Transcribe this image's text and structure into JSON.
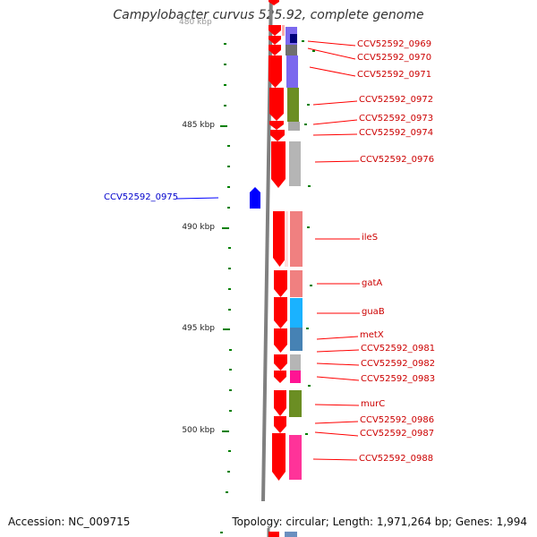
{
  "title": "Campylobacter curvus 525.92, complete genome",
  "partial_tick_label": "480 kbp",
  "ticks": [
    {
      "label": "485 kbp"
    },
    {
      "label": "490 kbp"
    },
    {
      "label": "495 kbp"
    },
    {
      "label": "500 kbp"
    }
  ],
  "genes_plus": [
    {
      "label": "CCV52592_0969",
      "color": "#00007a"
    },
    {
      "label": "CCV52592_0970",
      "color": "#6f6f6f"
    },
    {
      "label": "CCV52592_0971",
      "color": "#7b68ee"
    },
    {
      "label": "CCV52592_0972",
      "color": "#6b8e23"
    },
    {
      "label": "CCV52592_0973",
      "color": "#a9a9a9"
    },
    {
      "label": "CCV52592_0974",
      "color": "#ffffff"
    },
    {
      "label": "CCV52592_0976",
      "color": "#b5b5b5"
    },
    {
      "label": "ileS",
      "color": "#f08080"
    },
    {
      "label": "gatA",
      "color": "#f08080"
    },
    {
      "label": "guaB",
      "color": "#1ab2ff"
    },
    {
      "label": "metX",
      "color": "#4682b4"
    },
    {
      "label": "CCV52592_0981",
      "color": "#b5b5b5"
    },
    {
      "label": "CCV52592_0982",
      "color": "#b5b5b5"
    },
    {
      "label": "CCV52592_0983",
      "color": "#ff1493"
    },
    {
      "label": "murC",
      "color": "#6b8e23"
    },
    {
      "label": "CCV52592_0986",
      "color": "#6b8e23"
    },
    {
      "label": "CCV52592_0987",
      "color": "#ffffff"
    },
    {
      "label": "CCV52592_0988",
      "color": "#ff3399"
    }
  ],
  "genes_minus": [
    {
      "label": "CCV52592_0975",
      "color": "#0000ff"
    }
  ],
  "colors": {
    "strand_plus": "#ff0000",
    "strand_minus": "#0000ff",
    "backbone": "#808080",
    "tick_mark": "#008000",
    "label_plus": "#cc0000",
    "label_minus": "#0000cc"
  },
  "footer": {
    "accession": "Accession: NC_009715",
    "info": "Topology: circular; Length: 1,971,264 bp; Genes: 1,994"
  }
}
